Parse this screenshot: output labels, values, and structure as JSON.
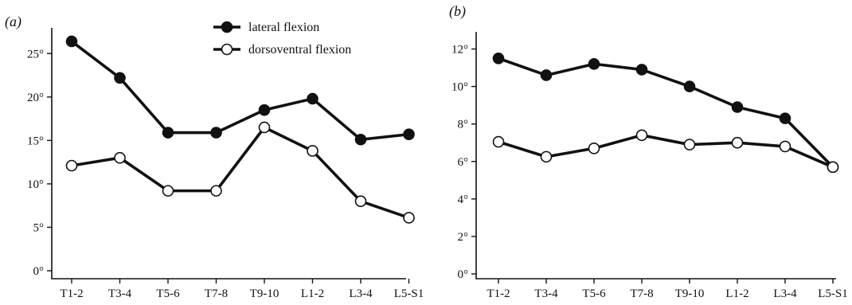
{
  "chart_data": [
    {
      "type": "line",
      "panel_label": "(a)",
      "categories": [
        "T1-2",
        "T3-4",
        "T5-6",
        "T7-8",
        "T9-10",
        "L1-2",
        "L3-4",
        "L5-S1"
      ],
      "y_ticks": [
        "0°",
        "5°",
        "10°",
        "15°",
        "20°",
        "25°"
      ],
      "ylim": [
        0,
        27.5
      ],
      "series": [
        {
          "name": "lateral flexion",
          "marker": "filled-circle",
          "values": [
            26.4,
            22.2,
            15.9,
            15.9,
            18.5,
            19.8,
            15.1,
            15.7
          ]
        },
        {
          "name": "dorsoventral flexion",
          "marker": "open-circle",
          "values": [
            12.1,
            13.0,
            9.2,
            9.2,
            16.5,
            13.8,
            8.0,
            6.1
          ]
        }
      ],
      "legend": "top-center",
      "grid": false
    },
    {
      "type": "line",
      "panel_label": "(b)",
      "categories": [
        "T1-2",
        "T3-4",
        "T5-6",
        "T7-8",
        "T9-10",
        "L1-2",
        "L3-4",
        "L5-S1"
      ],
      "y_ticks": [
        "0°",
        "2°",
        "4°",
        "6°",
        "8°",
        "10°",
        "12°"
      ],
      "ylim": [
        0,
        12.9
      ],
      "series": [
        {
          "name": "lateral flexion",
          "marker": "filled-circle",
          "values": [
            11.5,
            10.6,
            11.2,
            10.9,
            10.0,
            8.9,
            8.3,
            5.7
          ]
        },
        {
          "name": "dorsoventral flexion",
          "marker": "open-circle",
          "values": [
            7.05,
            6.25,
            6.7,
            7.4,
            6.9,
            7.0,
            6.8,
            5.7
          ]
        }
      ],
      "grid": false
    }
  ]
}
